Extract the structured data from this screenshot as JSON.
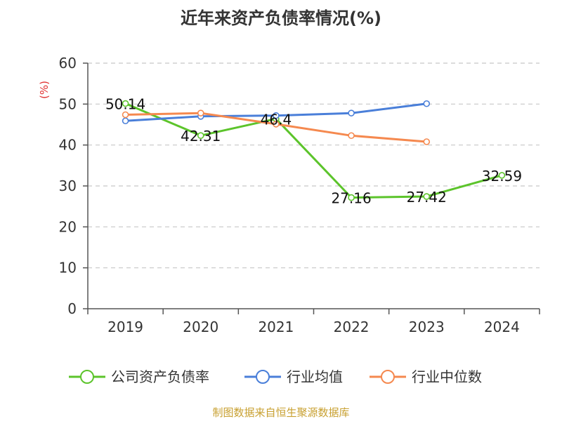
{
  "chart_data": {
    "type": "line",
    "title": "近年来资产负债率情况(%)",
    "unit_label": "(%)",
    "categories": [
      "2019",
      "2020",
      "2021",
      "2022",
      "2023",
      "2024"
    ],
    "y_ticks": [
      "0",
      "10",
      "20",
      "30",
      "40",
      "50",
      "60"
    ],
    "ylim": [
      0,
      60
    ],
    "grid": true,
    "grid_style": "dashed",
    "legend_position": "bottom",
    "series": [
      {
        "name": "公司资产负债率",
        "color": "#5cc42b",
        "values": [
          50.14,
          42.31,
          46.4,
          27.16,
          27.42,
          32.59
        ],
        "labels": [
          "50.14",
          "42.31",
          "46.4",
          "27.16",
          "27.42",
          "32.59"
        ],
        "show_labels": true
      },
      {
        "name": "行业均值",
        "color": "#4a7fd9",
        "values": [
          45.9,
          47.0,
          47.2,
          47.8,
          50.1,
          null
        ],
        "show_labels": false
      },
      {
        "name": "行业中位数",
        "color": "#f5894f",
        "values": [
          47.4,
          47.8,
          45.1,
          42.3,
          40.8,
          null
        ],
        "show_labels": false
      }
    ]
  },
  "footer": {
    "source": "制图数据来自恒生聚源数据库"
  }
}
